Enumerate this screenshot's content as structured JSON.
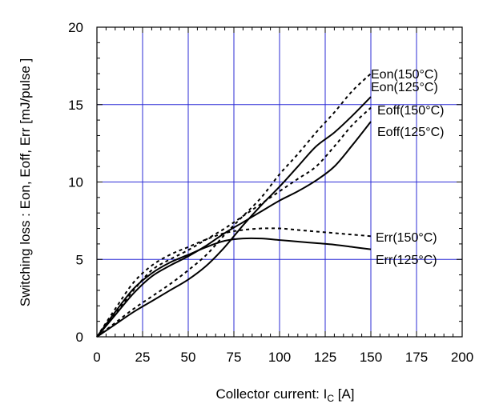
{
  "chart_data": {
    "type": "line",
    "title": "",
    "xlabel": "Collector current: I",
    "xlabel_sub": "C",
    "xlabel_unit": " [A]",
    "ylabel": "Switching loss : Eon, Eoff, Err [mJ/pulse ]",
    "xlim": [
      0,
      200
    ],
    "ylim": [
      0,
      20
    ],
    "x_ticks": [
      0,
      25,
      50,
      75,
      100,
      125,
      150,
      175,
      200
    ],
    "x_tick_labels": [
      "0",
      "25",
      "50",
      "75",
      "100",
      "125",
      "150",
      "175",
      "200"
    ],
    "y_ticks": [
      0,
      5,
      10,
      15,
      20
    ],
    "y_tick_labels": [
      "0",
      "5",
      "10",
      "15",
      "20"
    ],
    "grid": true,
    "grid_color": "#2b2bd6",
    "series": [
      {
        "name": "Eon(150°C)",
        "style": "dashed",
        "x": [
          0,
          10,
          20,
          30,
          40,
          50,
          60,
          70,
          80,
          90,
          100,
          110,
          120,
          130,
          140,
          150
        ],
        "y": [
          0,
          0.9,
          1.8,
          2.6,
          3.4,
          4.3,
          5.3,
          6.6,
          7.8,
          9.0,
          10.5,
          11.8,
          13.2,
          14.5,
          15.9,
          17.0
        ]
      },
      {
        "name": "Eon(125°C)",
        "style": "solid",
        "x": [
          0,
          10,
          20,
          30,
          40,
          50,
          60,
          70,
          80,
          90,
          100,
          110,
          120,
          130,
          140,
          150
        ],
        "y": [
          0,
          0.8,
          1.6,
          2.3,
          3.0,
          3.7,
          4.6,
          5.8,
          7.2,
          8.5,
          9.7,
          11.0,
          12.3,
          13.2,
          14.3,
          15.5
        ]
      },
      {
        "name": "Eoff(150°C)",
        "style": "dashed",
        "x": [
          0,
          10,
          20,
          30,
          40,
          50,
          60,
          70,
          80,
          90,
          100,
          110,
          120,
          130,
          140,
          150
        ],
        "y": [
          0,
          1.5,
          3.0,
          4.3,
          5.0,
          5.6,
          6.3,
          7.0,
          7.8,
          8.6,
          9.4,
          10.2,
          11.0,
          12.3,
          13.7,
          14.8
        ]
      },
      {
        "name": "Eoff(125°C)",
        "style": "solid",
        "x": [
          0,
          10,
          20,
          30,
          40,
          50,
          60,
          70,
          80,
          90,
          100,
          110,
          120,
          130,
          140,
          150
        ],
        "y": [
          0,
          1.4,
          2.8,
          3.9,
          4.6,
          5.2,
          5.9,
          6.7,
          7.4,
          8.1,
          8.8,
          9.4,
          10.1,
          11.0,
          12.4,
          13.9
        ]
      },
      {
        "name": "Err(150°C)",
        "style": "dashed",
        "x": [
          0,
          10,
          20,
          30,
          40,
          50,
          60,
          70,
          80,
          90,
          100,
          110,
          120,
          130,
          140,
          150
        ],
        "y": [
          0,
          1.8,
          3.5,
          4.6,
          5.3,
          5.8,
          6.3,
          6.7,
          6.9,
          7.0,
          7.0,
          6.9,
          6.8,
          6.7,
          6.6,
          6.5
        ]
      },
      {
        "name": "Err(125°C)",
        "style": "solid",
        "x": [
          0,
          10,
          20,
          30,
          40,
          50,
          60,
          70,
          80,
          90,
          100,
          110,
          120,
          130,
          140,
          150
        ],
        "y": [
          0,
          1.6,
          3.1,
          4.1,
          4.8,
          5.3,
          5.8,
          6.2,
          6.35,
          6.35,
          6.25,
          6.15,
          6.05,
          5.95,
          5.8,
          5.65
        ]
      }
    ]
  }
}
